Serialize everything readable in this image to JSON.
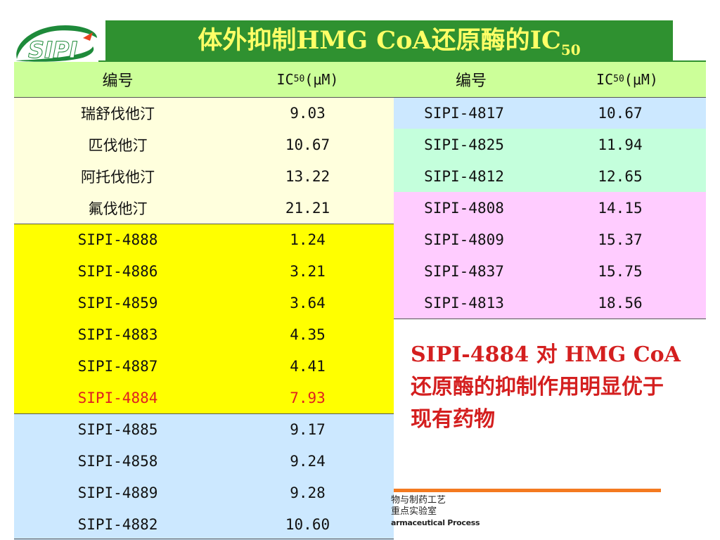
{
  "logo": {
    "text": "SIPI",
    "colors": {
      "green": "#1e8a3a",
      "white": "#ffffff",
      "red": "#e8421f"
    }
  },
  "title": {
    "main": "体外抑制HMG CoA还原酶的IC",
    "sub": "50"
  },
  "table": {
    "headers": [
      {
        "text": "编号"
      },
      {
        "pre": "IC",
        "sub": "50",
        "post": "(μM)"
      },
      {
        "text": "编号"
      },
      {
        "pre": "IC",
        "sub": "50",
        "post": "(μM)"
      }
    ],
    "left_rows": [
      {
        "id": "瑞舒伐他汀",
        "ic50": "9.03",
        "group": "reference"
      },
      {
        "id": "匹伐他汀",
        "ic50": "10.67",
        "group": "reference"
      },
      {
        "id": "阿托伐他汀",
        "ic50": "13.22",
        "group": "reference"
      },
      {
        "id": "氟伐他汀",
        "ic50": "21.21",
        "group": "reference"
      },
      {
        "id": "SIPI-4888",
        "ic50": "1.24",
        "group": "yellow"
      },
      {
        "id": "SIPI-4886",
        "ic50": "3.21",
        "group": "yellow"
      },
      {
        "id": "SIPI-4859",
        "ic50": "3.64",
        "group": "yellow"
      },
      {
        "id": "SIPI-4883",
        "ic50": "4.35",
        "group": "yellow"
      },
      {
        "id": "SIPI-4887",
        "ic50": "4.41",
        "group": "yellow"
      },
      {
        "id": "SIPI-4884",
        "ic50": "7.93",
        "group": "yellow",
        "highlight": true
      },
      {
        "id": "SIPI-4885",
        "ic50": "9.17",
        "group": "blue"
      },
      {
        "id": "SIPI-4858",
        "ic50": "9.24",
        "group": "blue"
      },
      {
        "id": "SIPI-4889",
        "ic50": "9.28",
        "group": "blue"
      },
      {
        "id": "SIPI-4882",
        "ic50": "10.60",
        "group": "blue"
      }
    ],
    "right_rows": [
      {
        "id": "SIPI-4817",
        "ic50": "10.67",
        "group": "blue"
      },
      {
        "id": "SIPI-4825",
        "ic50": "11.94",
        "group": "mint"
      },
      {
        "id": "SIPI-4812",
        "ic50": "12.65",
        "group": "mint"
      },
      {
        "id": "SIPI-4808",
        "ic50": "14.15",
        "group": "pink"
      },
      {
        "id": "SIPI-4809",
        "ic50": "15.37",
        "group": "pink"
      },
      {
        "id": "SIPI-4837",
        "ic50": "15.75",
        "group": "pink"
      },
      {
        "id": "SIPI-4813",
        "ic50": "18.56",
        "group": "pink"
      }
    ]
  },
  "note": {
    "text": "SIPI-4884 对 HMG CoA还原酶的抑制作用明显优于现有药物"
  },
  "lab": {
    "line1": "物与制药工艺",
    "line2": "重点实验室",
    "line3": "armaceutical Process"
  },
  "colors": {
    "title_bg": "#2f9130",
    "title_text": "#ffff66",
    "header_bg": "#ccff99",
    "reference": "#ffffdd",
    "yellow": "#ffff00",
    "blue": "#cce8ff",
    "mint": "#c4ffdc",
    "pink": "#ffccff",
    "highlight_text": "#e02020",
    "note_text": "#d41f1f"
  }
}
